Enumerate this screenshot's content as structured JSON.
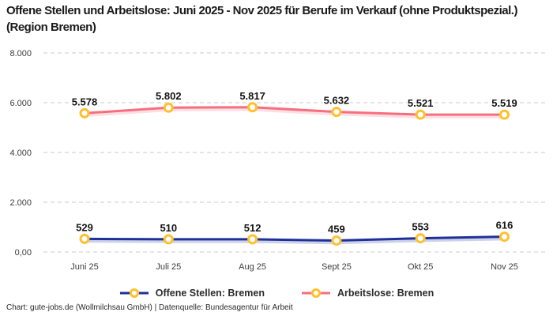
{
  "title": "Offene Stellen und Arbeitslose: Juni 2025 - Nov 2025 für Berufe im Verkauf (ohne Produktspezial.) (Region Bremen)",
  "footer": {
    "credit": "Chart: gute-jobs.de (Wollmilchsau GmbH) | Datenquelle: Bundesagentur für Arbeit"
  },
  "chart_data": {
    "type": "line",
    "categories": [
      "Juni 25",
      "Juli 25",
      "Aug 25",
      "Sept 25",
      "Okt 25",
      "Nov 25"
    ],
    "series": [
      {
        "name": "Offene Stellen: Bremen",
        "color": "#1e3199",
        "values": [
          529,
          510,
          512,
          459,
          553,
          616
        ],
        "labels": [
          "529",
          "510",
          "512",
          "459",
          "553",
          "616"
        ]
      },
      {
        "name": "Arbeitslose: Bremen",
        "color": "#f76e7f",
        "values": [
          5578,
          5802,
          5817,
          5632,
          5521,
          5519
        ],
        "labels": [
          "5.578",
          "5.802",
          "5.817",
          "5.632",
          "5.521",
          "5.519"
        ]
      }
    ],
    "marker": {
      "stroke": "#ffc02e",
      "fill": "#ffffff"
    },
    "yticks": [
      {
        "value": 0,
        "label": "0,00"
      },
      {
        "value": 2000,
        "label": "2.000"
      },
      {
        "value": 4000,
        "label": "4.000"
      },
      {
        "value": 6000,
        "label": "6.000"
      },
      {
        "value": 8000,
        "label": "8.000"
      }
    ],
    "ylim": [
      0,
      8000
    ],
    "grid": "horizontal-dashed",
    "legend_position": "bottom"
  }
}
